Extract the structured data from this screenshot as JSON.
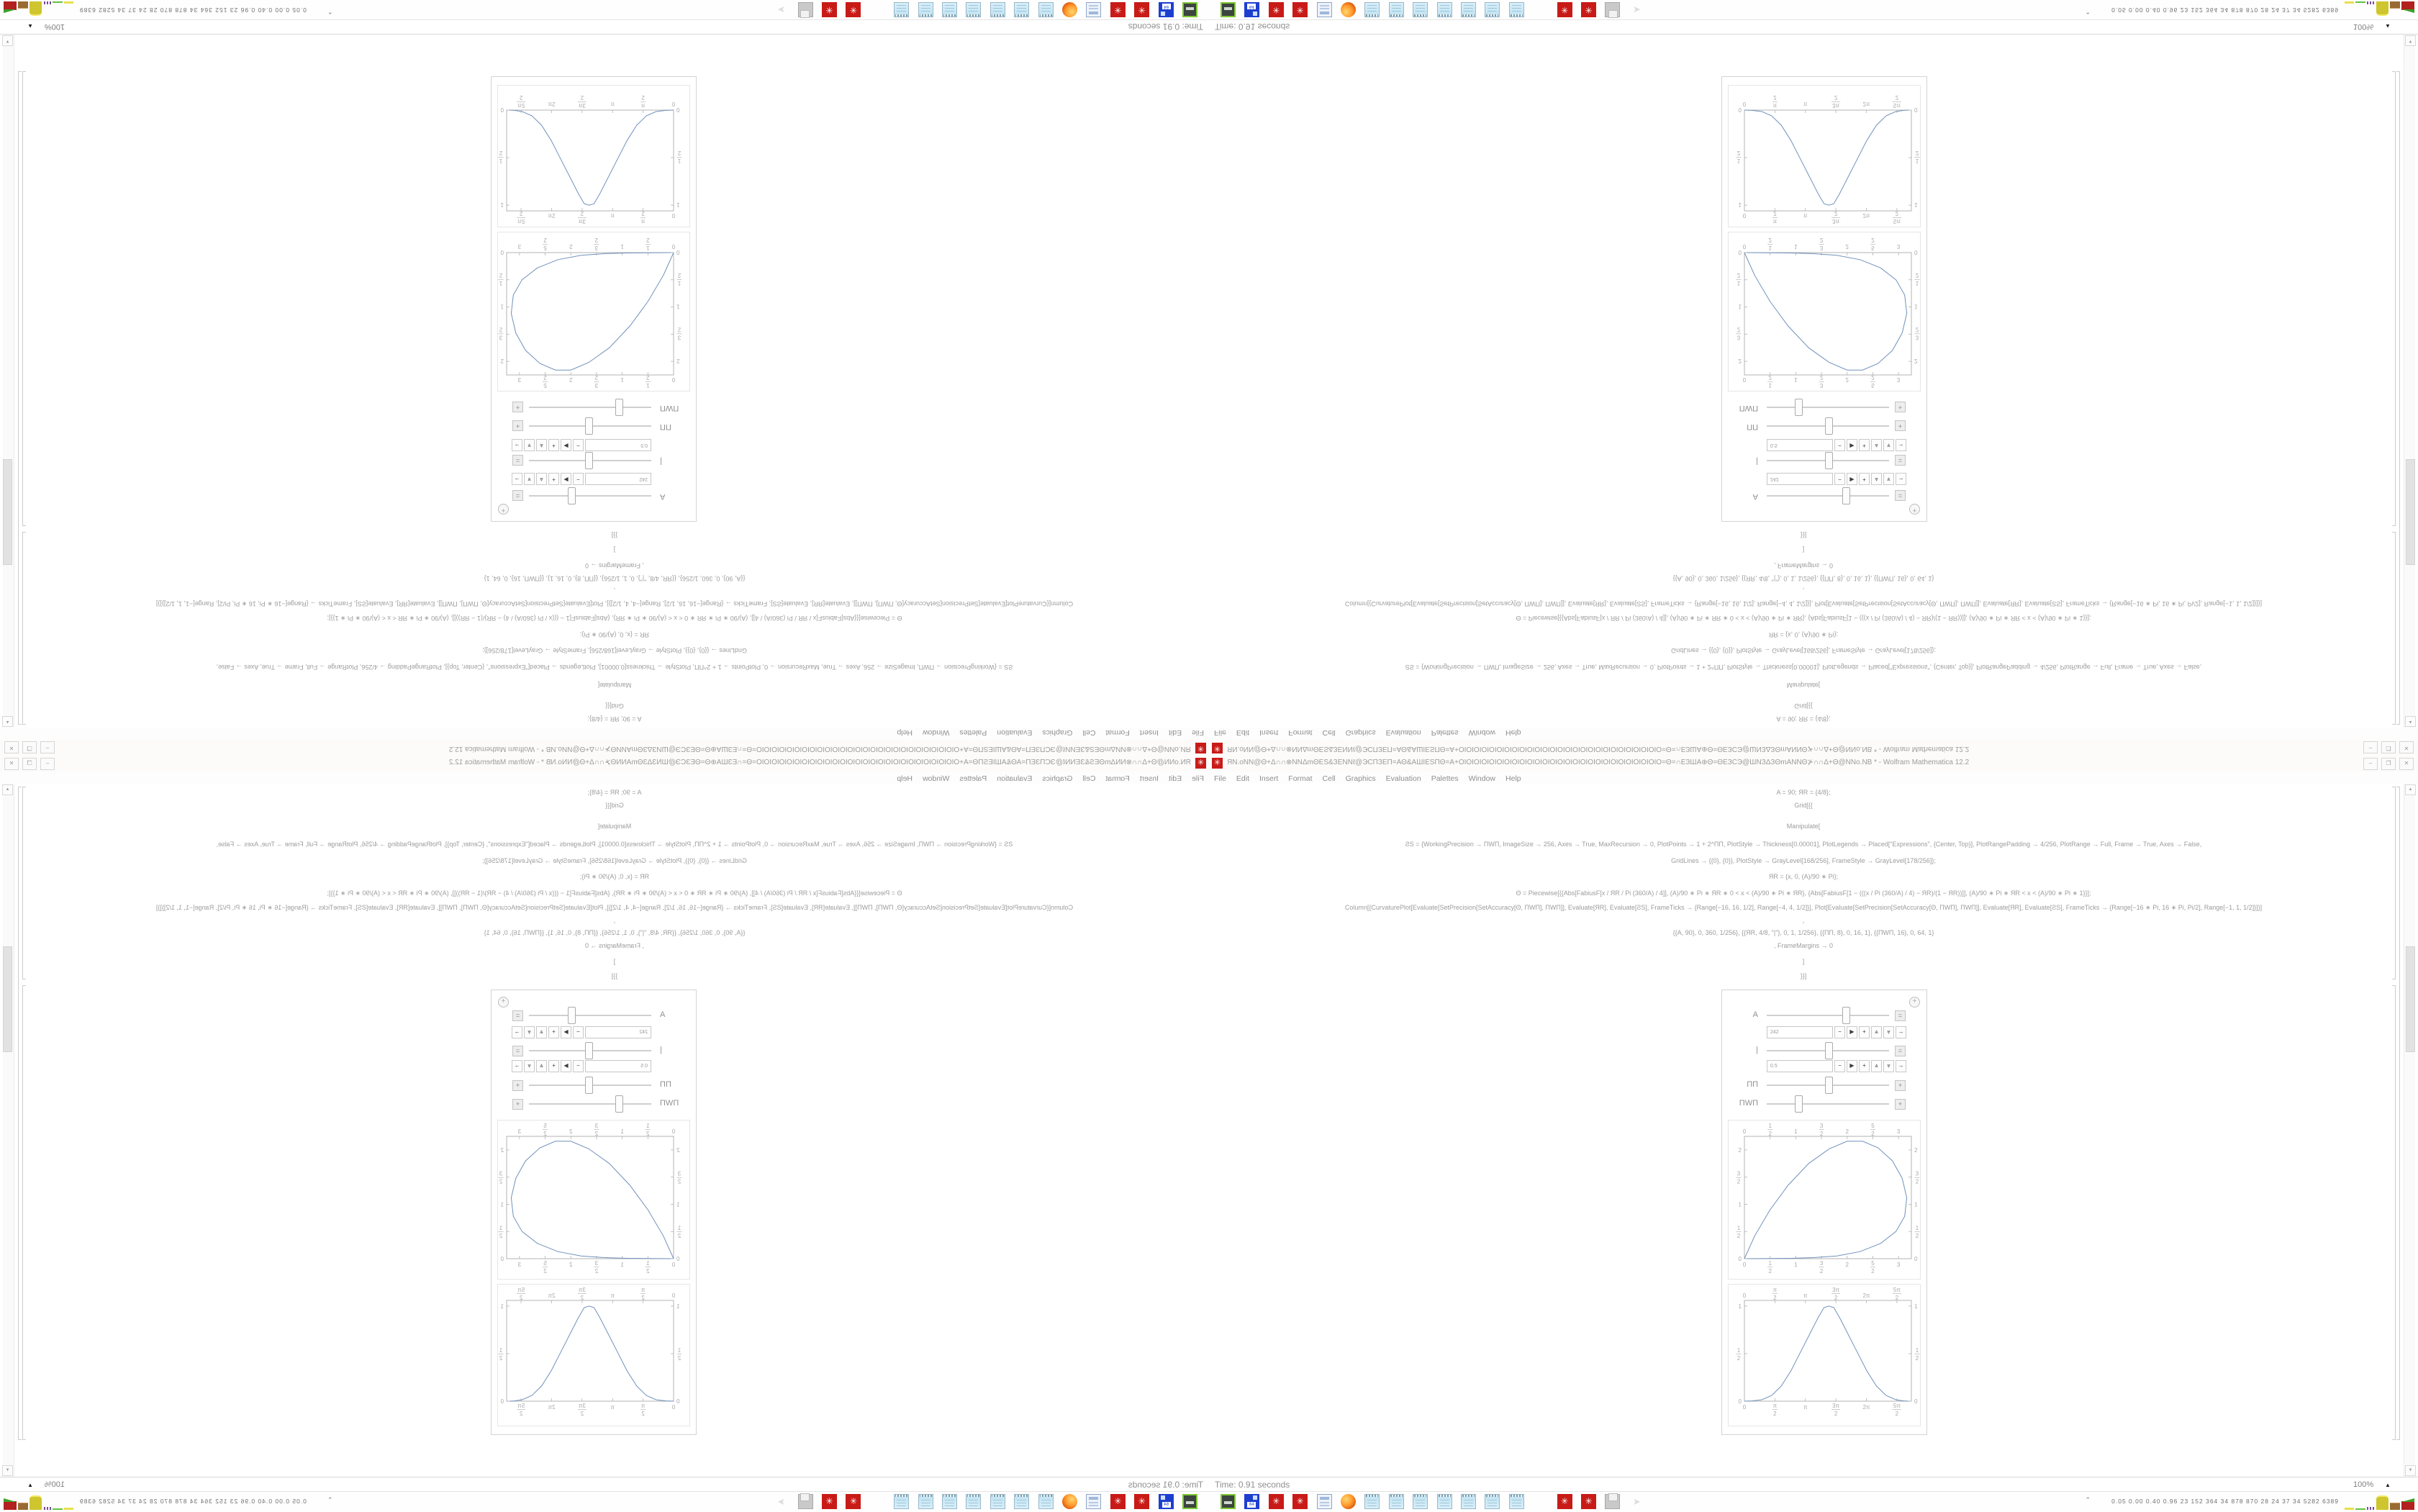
{
  "window": {
    "title": "ЯN.oNN@Θ+Δ∩∩⊗NNΔmΘΕS&ЗΕNNℓ@ЭϹΠЗΕΠ=ΑΘ&ΑШΙΕЅΠΘ=Α+ΟΙΟΙΟΙΟΙΟΙΟΙΟΙΟΙΟΙΟΙΟΙΟΙΟΙΟΙΟΙΟΙΟΙΟΙΟΙΟΙΟΙΟΙΟΙΟΙΟΙΟΙΟ=Θ=∩ΕЗШΑ⊕Θ=ΘΕЗϹЭ@ШNЗΔЗΘmΑNNΘ⊁∩∩Δ+Θ@NNο.NB * - Wolfram Mathematica 12.2",
    "app_icon_glyph": "✳",
    "controls": {
      "minimize": "–",
      "restore": "❐",
      "close": "✕"
    }
  },
  "menu": [
    "File",
    "Edit",
    "Insert",
    "Format",
    "Cell",
    "Graphics",
    "Evaluation",
    "Palettes",
    "Window",
    "Help"
  ],
  "code_cell": {
    "lines": [
      "A = 90; ЯR = {4/8};",
      "Grid[{{",
      "Manipulate[",
      "ƧS = {WorkingPrecision → ПWП, ImageSize → 256, Axes → True, MaxRecursion → 0, PlotPoints → 1 + 2^ПП, PlotStyle → Thickness[0.00001], PlotLegends → Placed[\"Expressions\", {Center, Top}], PlotRangePadding → 4/256, PlotRange → Full, Frame → True, Axes → False,",
      "GridLines → {{0}, {0}}, PlotStyle → GrayLevel[168/256], FrameStyle → GrayLevel[178/256]};",
      "ЯR = {x, 0, (A)/90 ∗ Pi};",
      "Θ = Piecewise[{{Abs[FabiusF[x / ЯR / Pi (360/A) / 4]], (A)/90 ∗ Pi ∗ ЯR ∗ 0 < x < (A)/90 ∗ Pi ∗ ЯR}, {Abs[FabiusF[1 − (((x / Pi (360/A) / 4) − ЯR)/(1 − ЯR))]], (A)/90 ∗ Pi ∗ ЯR < x < (A)/90 ∗ Pi ∗ 1}}];",
      "Column[{CurvaturePlot[Evaluate[SetPrecision[SetAccuracy[Θ, ПWП], ПWП]], Evaluate[ЯR], Evaluate[ƧS], FrameTicks → {Range[−16, 16, 1/2], Range[−4, 4, 1/2]}], Plot[Evaluate[SetPrecision[SetAccuracy[Θ, ПWП], ПWП]], Evaluate[ЯR], Evaluate[ƧS], FrameTicks → {Range[−16 ∗ Pi, 16 ∗ Pi, Pi/2], Range[−1, 1, 1/2]}]}]",
      ",",
      "{{A, 90}, 0, 360, 1/256}, {{ЯR, 4/8, \"|\"}, 0, 1, 1/256}, {{ПП, 8}, 0, 16, 1}, {{ПWП, 16}, 0, 64, 1}",
      ", FrameMargins → 0",
      "]",
      "}}]"
    ]
  },
  "manipulate": {
    "plus_button": "+",
    "control_buttons": [
      "−",
      "▶",
      "+",
      "⩓",
      "⩔",
      "→"
    ],
    "sliders": [
      {
        "label": "A",
        "percent": 64,
        "toggle": "=",
        "expanded": true,
        "value": "242"
      },
      {
        "label": "|",
        "percent": 50,
        "toggle": "=",
        "expanded": true,
        "value": "0.5"
      },
      {
        "label": "ПП",
        "percent": 50,
        "toggle": "+",
        "expanded": false,
        "value": ""
      },
      {
        "label": "ПWП",
        "percent": 25,
        "toggle": "+",
        "expanded": false,
        "value": ""
      }
    ]
  },
  "chart_data": [
    {
      "type": "line",
      "title": "",
      "xlabel": "",
      "ylabel": "",
      "frame": true,
      "grid": false,
      "legend": "none",
      "xlim": [
        0,
        3.25
      ],
      "ylim": [
        0,
        2.25
      ],
      "xticks": {
        "values": [
          0,
          0.5,
          1,
          1.5,
          2,
          2.5,
          3
        ],
        "labels": [
          "0",
          "1/2",
          "1",
          "3/2",
          "2",
          "5/2",
          "3"
        ]
      },
      "yticks": {
        "values": [
          0,
          0.5,
          1,
          1.5,
          2
        ],
        "labels": [
          "0",
          "1/2",
          "1",
          "3/2",
          "2"
        ]
      },
      "series": [
        {
          "name": "curvature-teardrop",
          "color": "#7191bb",
          "points": [
            [
              0,
              0
            ],
            [
              0.2,
              0.42
            ],
            [
              0.5,
              0.9
            ],
            [
              0.85,
              1.35
            ],
            [
              1.25,
              1.75
            ],
            [
              1.65,
              2.02
            ],
            [
              2.0,
              2.16
            ],
            [
              2.3,
              2.16
            ],
            [
              2.6,
              2.04
            ],
            [
              2.88,
              1.8
            ],
            [
              3.07,
              1.48
            ],
            [
              3.16,
              1.12
            ],
            [
              3.12,
              0.78
            ],
            [
              2.95,
              0.5
            ],
            [
              2.65,
              0.28
            ],
            [
              2.25,
              0.13
            ],
            [
              1.8,
              0.05
            ],
            [
              1.35,
              0.02
            ],
            [
              0.9,
              0.007
            ],
            [
              0.45,
              0.002
            ],
            [
              0.05,
              0
            ]
          ]
        }
      ]
    },
    {
      "type": "line",
      "title": "",
      "xlabel": "",
      "ylabel": "",
      "frame": true,
      "grid": false,
      "legend": "none",
      "xlim": [
        0,
        8.6
      ],
      "ylim": [
        0,
        1.06
      ],
      "xticks": {
        "values": [
          0,
          1.5708,
          3.1416,
          4.7124,
          6.2832,
          7.854
        ],
        "labels": [
          "0",
          "π/2",
          "π",
          "3π/2",
          "2π",
          "5π/2"
        ]
      },
      "yticks": {
        "values": [
          0,
          0.5,
          1
        ],
        "labels": [
          "0",
          "1/2",
          "1"
        ]
      },
      "series": [
        {
          "name": "fabius-pulse",
          "color": "#7191bb",
          "points": [
            [
              0,
              0
            ],
            [
              0.4,
              0.003
            ],
            [
              0.9,
              0.015
            ],
            [
              1.4,
              0.06
            ],
            [
              1.9,
              0.16
            ],
            [
              2.4,
              0.32
            ],
            [
              2.9,
              0.52
            ],
            [
              3.4,
              0.72
            ],
            [
              3.8,
              0.88
            ],
            [
              4.1,
              0.985
            ],
            [
              4.35,
              1.0
            ],
            [
              4.6,
              0.985
            ],
            [
              4.9,
              0.88
            ],
            [
              5.3,
              0.72
            ],
            [
              5.8,
              0.52
            ],
            [
              6.3,
              0.32
            ],
            [
              6.8,
              0.16
            ],
            [
              7.3,
              0.06
            ],
            [
              7.8,
              0.015
            ],
            [
              8.2,
              0.003
            ],
            [
              8.45,
              0
            ]
          ]
        }
      ]
    }
  ],
  "scrollbar": {
    "up": "▲",
    "down": "▼"
  },
  "status_bar": {
    "timing": "Time: 0.91 seconds",
    "magnification": "100%",
    "magnification_marker": "▲"
  },
  "taskbar": {
    "icons": [
      "drive",
      "floppy64",
      "mathematica",
      "mathematica",
      "calculator",
      "firefox",
      "notepad",
      "notepad",
      "notepad",
      "notepad",
      "notepad",
      "notepad",
      "notepad",
      "calc2",
      "mathematica",
      "mathematica",
      "printer",
      "pointer"
    ],
    "floppy_label": "64",
    "mathematica_glyph": "✳",
    "pointer_glyph": "➤",
    "tray_chevron": "⌃",
    "tray_numbers": "0.05 0.00 0.40 0.96  23  152  364  34  878  870  28  24  37  34  5282 6389"
  },
  "colors": {
    "accent_red": "#c81b17",
    "curve_blue": "#7191bb",
    "frame_gray": "#b3b3b3",
    "label_gray": "#a8a8a8",
    "code_gray": "#9c9c9c"
  }
}
